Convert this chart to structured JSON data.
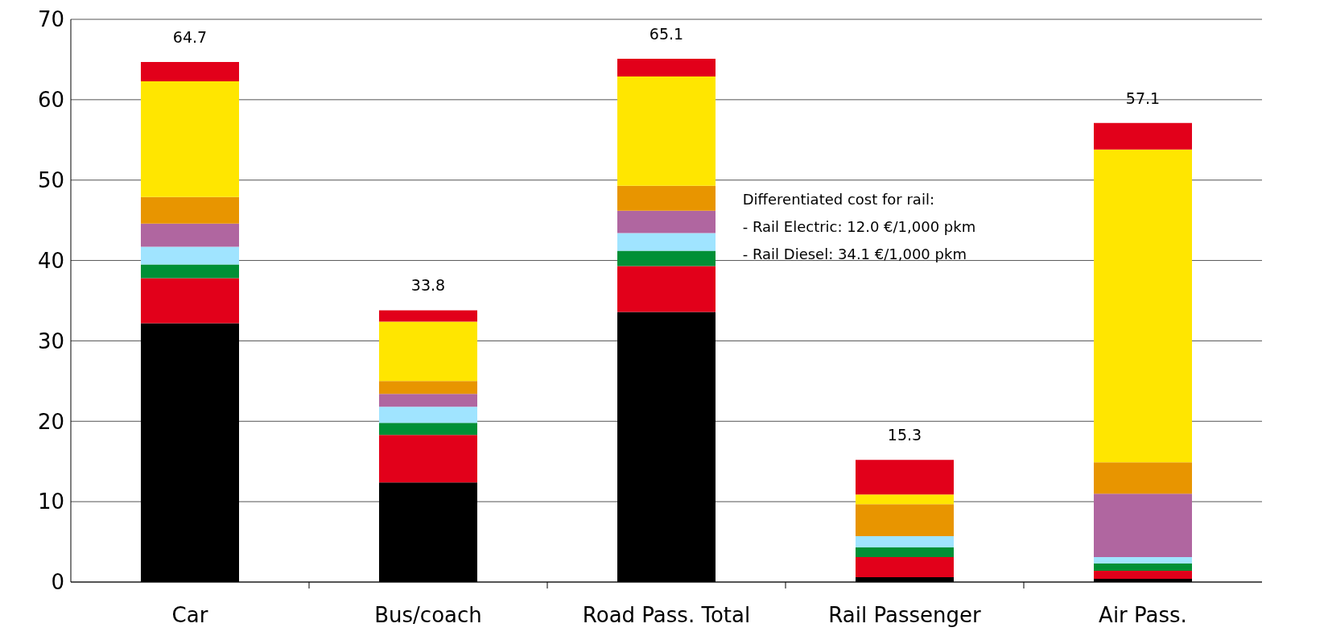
{
  "chart_data": {
    "type": "bar",
    "stacked": true,
    "categories": [
      "Car",
      "Bus/coach",
      "Road Pass. Total",
      "Rail Passenger",
      "Air Pass."
    ],
    "series": [
      {
        "color": "#000000",
        "values": [
          32.2,
          12.4,
          33.6,
          0.6,
          0.4
        ]
      },
      {
        "color": "#e2001a",
        "values": [
          5.6,
          5.9,
          5.7,
          2.5,
          1.0
        ]
      },
      {
        "color": "#009036",
        "values": [
          1.7,
          1.5,
          1.9,
          1.2,
          0.9
        ]
      },
      {
        "color": "#a0e4ff",
        "values": [
          2.2,
          2.0,
          2.2,
          1.4,
          0.8
        ]
      },
      {
        "color": "#b066a0",
        "values": [
          2.9,
          1.6,
          2.8,
          null,
          7.9
        ]
      },
      {
        "color": "#e89500",
        "values": [
          3.3,
          1.6,
          3.1,
          4.0,
          3.9
        ]
      },
      {
        "color": "#ffe600",
        "values": [
          14.4,
          7.4,
          13.6,
          1.2,
          38.9
        ]
      },
      {
        "color": "#e2001a",
        "values": [
          2.4,
          1.4,
          2.2,
          4.3,
          3.3
        ]
      }
    ],
    "totals": [
      "64.7",
      "33.8",
      "65.1",
      "15.3",
      "57.1"
    ],
    "ylim": [
      0,
      70
    ],
    "yticks": [
      0,
      10,
      20,
      30,
      40,
      50,
      60,
      70
    ],
    "grid": "y",
    "legend": false,
    "annotations": [
      "Differentiated cost for rail:",
      "- Rail Electric: 12.0 €/1,000 pkm",
      "- Rail Diesel: 34.1 €/1,000 pkm"
    ]
  }
}
